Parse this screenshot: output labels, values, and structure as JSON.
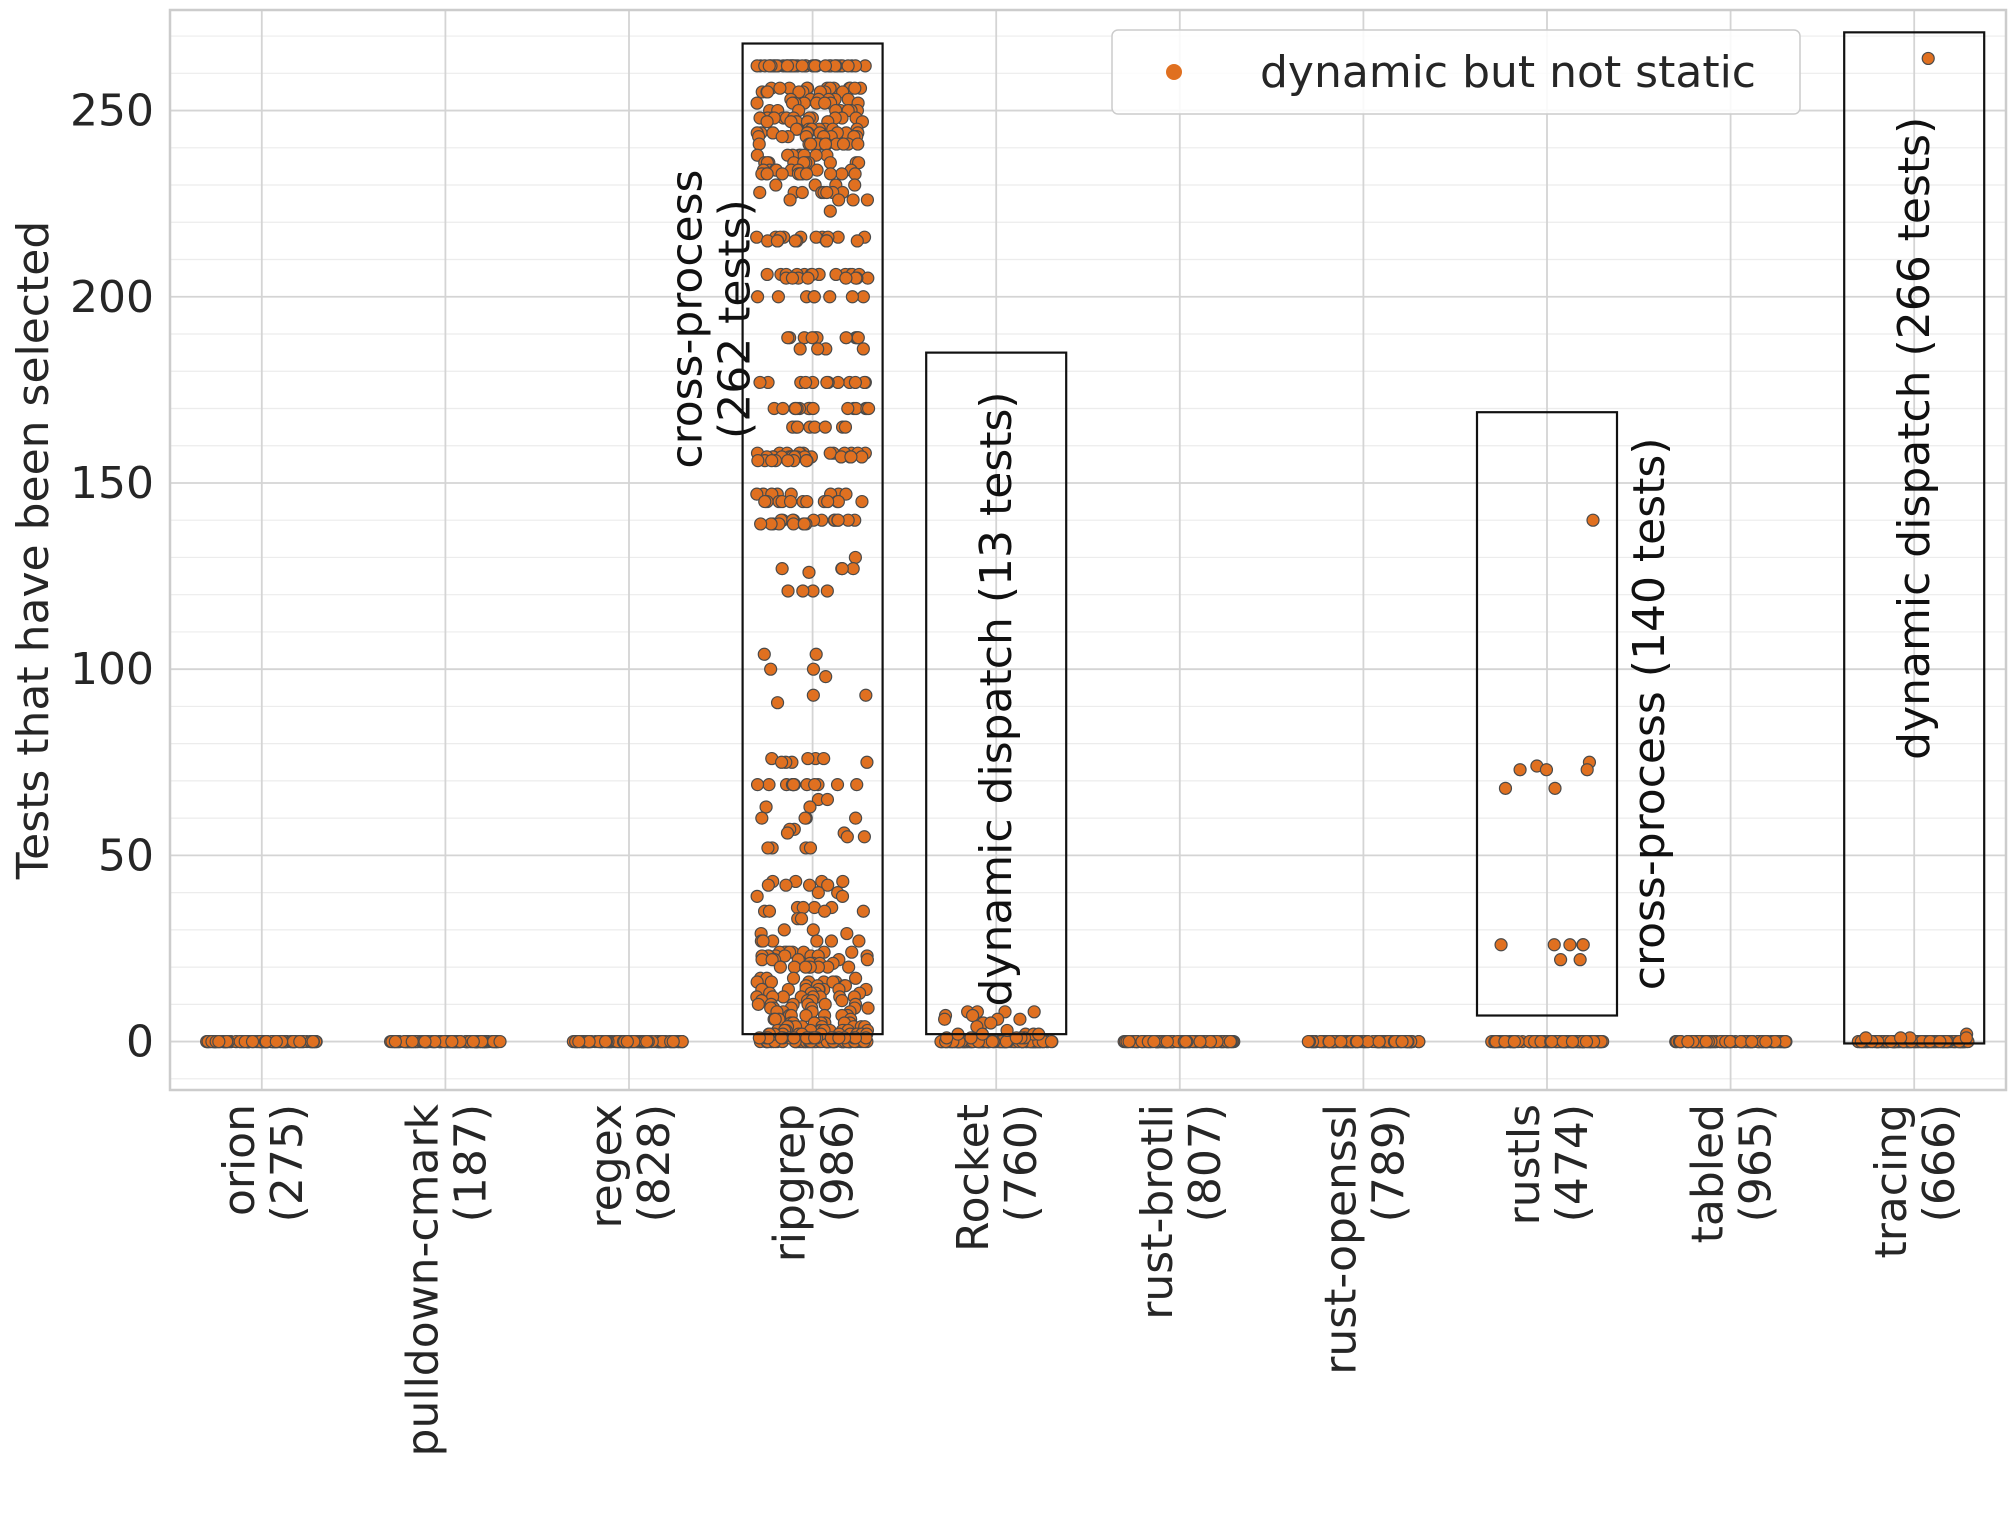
{
  "chart_data": {
    "type": "scatter",
    "subtype": "strip-plot",
    "ylabel": "Tests that have been selected",
    "xlabel": "",
    "ylim": [
      -13,
      277
    ],
    "yticks": [
      0,
      50,
      100,
      150,
      200,
      250
    ],
    "grid": true,
    "minor_grid": true,
    "legend": {
      "placement": "top-right",
      "entries": [
        {
          "label": "dynamic but not static",
          "color": "#e07020"
        }
      ]
    },
    "marker_color": "#e07020",
    "marker_edge": "#4a4a4a",
    "categories": [
      {
        "name": "orion",
        "count": "(275)"
      },
      {
        "name": "pulldown-cmark",
        "count": "(187)"
      },
      {
        "name": "regex",
        "count": "(828)"
      },
      {
        "name": "ripgrep",
        "count": "(986)"
      },
      {
        "name": "Rocket",
        "count": "(760)"
      },
      {
        "name": "rust-brotli",
        "count": "(807)"
      },
      {
        "name": "rust-openssl",
        "count": "(789)"
      },
      {
        "name": "rustls",
        "count": "(474)"
      },
      {
        "name": "tabled",
        "count": "(965)"
      },
      {
        "name": "tracing",
        "count": "(666)"
      }
    ],
    "nonzero_values": {
      "ripgrep": [
        262,
        262,
        262,
        262,
        262,
        262,
        262,
        262,
        262,
        262,
        262,
        262,
        262,
        262,
        262,
        262,
        262,
        262,
        262,
        262,
        262,
        262,
        262,
        262,
        262,
        262,
        262,
        262,
        262,
        262,
        262,
        262,
        262,
        262,
        262,
        262,
        262,
        262,
        262,
        262,
        256,
        256,
        256,
        256,
        256,
        256,
        256,
        256,
        256,
        256,
        256,
        256,
        255,
        255,
        255,
        255,
        255,
        255,
        255,
        255,
        253,
        253,
        253,
        253,
        253,
        253,
        252,
        252,
        252,
        252,
        252,
        252,
        252,
        252,
        250,
        250,
        250,
        250,
        250,
        250,
        250,
        250,
        248,
        248,
        248,
        248,
        248,
        248,
        248,
        248,
        248,
        248,
        248,
        248,
        247,
        247,
        247,
        247,
        247,
        247,
        245,
        245,
        245,
        245,
        245,
        245,
        245,
        245,
        244,
        244,
        244,
        244,
        244,
        244,
        244,
        244,
        244,
        244,
        243,
        243,
        243,
        243,
        243,
        243,
        243,
        243,
        241,
        241,
        241,
        241,
        241,
        241,
        241,
        241,
        241,
        241,
        241,
        241,
        238,
        238,
        238,
        238,
        238,
        238,
        238,
        238,
        236,
        236,
        236,
        236,
        236,
        236,
        236,
        236,
        236,
        236,
        234,
        234,
        234,
        234,
        234,
        234,
        234,
        234,
        233,
        233,
        233,
        233,
        233,
        233,
        233,
        233,
        233,
        233,
        233,
        233,
        230,
        230,
        230,
        230,
        228,
        228,
        228,
        228,
        228,
        228,
        228,
        228,
        226,
        226,
        226,
        226,
        223,
        216,
        216,
        216,
        216,
        216,
        216,
        216,
        216,
        216,
        216,
        215,
        215,
        215,
        215,
        215,
        215,
        215,
        215,
        206,
        206,
        206,
        206,
        206,
        206,
        206,
        206,
        206,
        206,
        206,
        206,
        206,
        206,
        205,
        205,
        205,
        205,
        205,
        205,
        205,
        205,
        200,
        200,
        200,
        200,
        200,
        200,
        200,
        200,
        189,
        189,
        189,
        189,
        189,
        189,
        189,
        189,
        189,
        189,
        186,
        186,
        186,
        186,
        177,
        177,
        177,
        177,
        177,
        177,
        177,
        177,
        177,
        177,
        177,
        177,
        170,
        170,
        170,
        170,
        170,
        170,
        170,
        170,
        170,
        170,
        170,
        170,
        170,
        170,
        170,
        170,
        165,
        165,
        165,
        165,
        165,
        165,
        165,
        165,
        158,
        158,
        158,
        158,
        158,
        158,
        158,
        158,
        158,
        158,
        158,
        158,
        157,
        157,
        157,
        157,
        157,
        157,
        157,
        157,
        157,
        157,
        157,
        157,
        157,
        157,
        157,
        157,
        156,
        156,
        156,
        156,
        156,
        156,
        156,
        156,
        147,
        147,
        147,
        147,
        147,
        147,
        147,
        147,
        145,
        145,
        145,
        145,
        145,
        145,
        145,
        145,
        145,
        145,
        145,
        145,
        140,
        140,
        140,
        140,
        140,
        140,
        140,
        140,
        140,
        140,
        140,
        140,
        139,
        139,
        139,
        139,
        139,
        139,
        139,
        139,
        130,
        127,
        127,
        127,
        127,
        126,
        121,
        121,
        121,
        121,
        104,
        104,
        100,
        100,
        98,
        93,
        93,
        91,
        76,
        76,
        76,
        76,
        75,
        75,
        75,
        75,
        69,
        69,
        69,
        69,
        69,
        69,
        69,
        69,
        69,
        69,
        69,
        69,
        65,
        65,
        63,
        63,
        60,
        60,
        60,
        60,
        57,
        57,
        56,
        56,
        55,
        55,
        52,
        52,
        52,
        52,
        43,
        43,
        43,
        43,
        42,
        42,
        42,
        42,
        40,
        40,
        39,
        39,
        36,
        36,
        36,
        36,
        35,
        35,
        35,
        35,
        33,
        33,
        30,
        30,
        29,
        29,
        27,
        27,
        27,
        27,
        27,
        27,
        24,
        24,
        24,
        24,
        24,
        24,
        24,
        24,
        23,
        23,
        23,
        23,
        23,
        23,
        23,
        23,
        22,
        22,
        22,
        22,
        22,
        22,
        21,
        21,
        21,
        21,
        20,
        20,
        20,
        20,
        20,
        20,
        20,
        20,
        17,
        17,
        17,
        17,
        16,
        16,
        16,
        16,
        16,
        16,
        15,
        15,
        15,
        15,
        14,
        14,
        14,
        14,
        14,
        14,
        14,
        14,
        13,
        13,
        13,
        13,
        12,
        12,
        12,
        12,
        12,
        12,
        12,
        12,
        11,
        11,
        11,
        11,
        10,
        10,
        10,
        10,
        10,
        10,
        9,
        9,
        9,
        9,
        9,
        9,
        8,
        8,
        8,
        8,
        7,
        7,
        7,
        7,
        7,
        7,
        6,
        6,
        6,
        6,
        5,
        5,
        5,
        5,
        5,
        5,
        5,
        5,
        4,
        4,
        4,
        4,
        4,
        4,
        4,
        4,
        3,
        3,
        3,
        3,
        3,
        3,
        3,
        3,
        3,
        3,
        3,
        3,
        2,
        2,
        2,
        2,
        2,
        2,
        2,
        2,
        2,
        2,
        2,
        2,
        1,
        1,
        1,
        1,
        1,
        1,
        1,
        1,
        1,
        1,
        1,
        1,
        1,
        1,
        1,
        1,
        1,
        1,
        1,
        1
      ],
      "Rocket": [
        8,
        8,
        8,
        8,
        7,
        7,
        6,
        6,
        6,
        5,
        5,
        4,
        3,
        2,
        2,
        2,
        2,
        2,
        1,
        1,
        1,
        1,
        1
      ],
      "rustls": [
        140,
        75,
        74,
        73,
        73,
        73,
        68,
        68,
        26,
        26,
        26,
        26,
        26,
        22,
        22
      ],
      "tracing": [
        264,
        2,
        1,
        1,
        1,
        1
      ]
    },
    "zero_counts": {
      "orion": 120,
      "pulldown-cmark": 120,
      "regex": 120,
      "ripgrep": 60,
      "Rocket": 120,
      "rust-brotli": 120,
      "rust-openssl": 120,
      "rustls": 120,
      "tabled": 120,
      "tracing": 120
    },
    "annotations": [
      {
        "category": "ripgrep",
        "lines": [
          "cross-process",
          "(262 tests)"
        ],
        "box_y": [
          2,
          268
        ]
      },
      {
        "category": "Rocket",
        "lines": [
          "dynamic dispatch (13 tests)"
        ],
        "box_y": [
          2,
          185
        ]
      },
      {
        "category": "rustls",
        "lines": [
          "cross-process (140 tests)"
        ],
        "box_y": [
          7,
          169
        ]
      },
      {
        "category": "tracing",
        "lines": [
          "dynamic dispatch (266 tests)"
        ],
        "box_y": [
          -0.5,
          271
        ]
      }
    ]
  }
}
